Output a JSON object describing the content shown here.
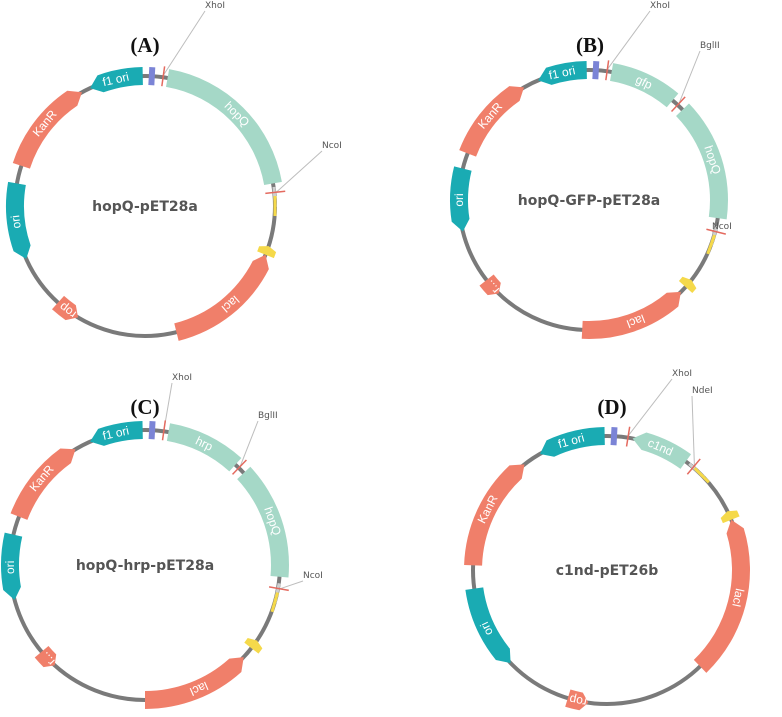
{
  "colors": {
    "backbone": "#7a7a7a",
    "resistance_gene": "#f07f6a",
    "origin": "#1aabb3",
    "insert": "#a5d8c7",
    "tag": "#7b84d6",
    "promoter": "#f5d94a",
    "site_line": "#bdbdbd",
    "site_mark": "#e46a5f"
  },
  "panels": [
    {
      "panel_label": "(A)",
      "plasmid_name": "hopQ-pET28a",
      "features": [
        {
          "label": "f1 ori",
          "type": "origin"
        },
        {
          "label": "hopQ",
          "type": "insert"
        },
        {
          "label": "lacI",
          "type": "resistance_gene"
        },
        {
          "label": "rop",
          "type": "resistance_gene"
        },
        {
          "label": "ori",
          "type": "origin"
        },
        {
          "label": "KanR",
          "type": "resistance_gene"
        }
      ],
      "sites": [
        {
          "label": "XhoI"
        },
        {
          "label": "NcoI"
        }
      ]
    },
    {
      "panel_label": "(B)",
      "plasmid_name": "hopQ-GFP-pET28a",
      "features": [
        {
          "label": "f1 ori",
          "type": "origin"
        },
        {
          "label": "gfp",
          "type": "insert"
        },
        {
          "label": "hopQ",
          "type": "insert"
        },
        {
          "label": "lacI",
          "type": "resistance_gene"
        },
        {
          "label": "r...",
          "type": "resistance_gene"
        },
        {
          "label": "ori",
          "type": "origin"
        },
        {
          "label": "KanR",
          "type": "resistance_gene"
        }
      ],
      "sites": [
        {
          "label": "XhoI"
        },
        {
          "label": "BglII"
        },
        {
          "label": "NcoI"
        }
      ]
    },
    {
      "panel_label": "(C)",
      "plasmid_name": "hopQ-hrp-pET28a",
      "features": [
        {
          "label": "f1 ori",
          "type": "origin"
        },
        {
          "label": "hrp",
          "type": "insert"
        },
        {
          "label": "hopQ",
          "type": "insert"
        },
        {
          "label": "lacI",
          "type": "resistance_gene"
        },
        {
          "label": "r...",
          "type": "resistance_gene"
        },
        {
          "label": "ori",
          "type": "origin"
        },
        {
          "label": "KanR",
          "type": "resistance_gene"
        }
      ],
      "sites": [
        {
          "label": "XhoI"
        },
        {
          "label": "BglII"
        },
        {
          "label": "NcoI"
        }
      ]
    },
    {
      "panel_label": "(D)",
      "plasmid_name": "c1nd-pET26b",
      "features": [
        {
          "label": "f1 ori",
          "type": "origin"
        },
        {
          "label": "c1nd",
          "type": "insert"
        },
        {
          "label": "lacI",
          "type": "resistance_gene"
        },
        {
          "label": "rop",
          "type": "resistance_gene"
        },
        {
          "label": "ori",
          "type": "origin"
        },
        {
          "label": "KanR",
          "type": "resistance_gene"
        }
      ],
      "sites": [
        {
          "label": "XhoI"
        },
        {
          "label": "NdeI"
        }
      ]
    }
  ]
}
